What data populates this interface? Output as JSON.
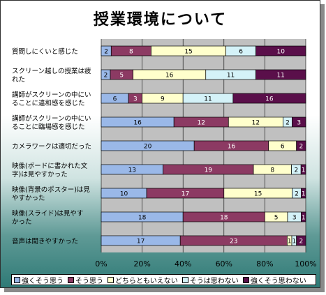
{
  "chart_data": {
    "type": "bar",
    "orientation": "horizontal",
    "stacked": "percent",
    "title": "授業環境について",
    "categories": [
      "質問しにくいと感じた",
      "スクリーン越しの授業は疲れた",
      "講師がスクリーンの中にいることに違和感を感じた",
      "講師がスクリーンの中にいることに臨場感を感じた",
      "カメラワークは適切だった",
      "映像(ボードに書かれた文字)は見やすかった",
      "映像(背景のポスター)は見やすかった",
      "映像(スライド)は見やすかった",
      "音声は聞きやすかった"
    ],
    "category_lines": [
      [
        "質問しにくいと感じた"
      ],
      [
        "スクリーン越しの授業は疲",
        "れた"
      ],
      [
        "講師がスクリーンの中にい",
        "ることに違和感を感じた"
      ],
      [
        "講師がスクリーンの中にい",
        "ることに臨場感を感じた"
      ],
      [
        "カメラワークは適切だった"
      ],
      [
        "映像(ボードに書かれた文",
        "字)は見やすかった"
      ],
      [
        "映像(背景のポスター)は見",
        "やすかった"
      ],
      [
        "映像(スライド)は見やす",
        "かった"
      ],
      [
        "音声は聞きやすかった"
      ]
    ],
    "series": [
      {
        "name": "強くそう思う",
        "color": "#9ab8e8",
        "values": [
          2,
          2,
          6,
          16,
          20,
          13,
          10,
          18,
          17
        ]
      },
      {
        "name": "そう思う",
        "color": "#8c3a63",
        "values": [
          8,
          5,
          3,
          12,
          16,
          19,
          17,
          18,
          23
        ]
      },
      {
        "name": "どちらともいえない",
        "color": "#ffffcc",
        "values": [
          15,
          16,
          9,
          12,
          6,
          8,
          15,
          5,
          1
        ]
      },
      {
        "name": "そうは思わない",
        "color": "#d4f2f8",
        "values": [
          6,
          11,
          11,
          2,
          0,
          2,
          2,
          3,
          1
        ]
      },
      {
        "name": "強くそう思わない",
        "color": "#5a0f4a",
        "values": [
          10,
          11,
          16,
          3,
          2,
          1,
          1,
          1,
          2
        ]
      }
    ],
    "xlim": [
      0,
      100
    ],
    "xticks": [
      "0%",
      "20%",
      "40%",
      "60%",
      "80%",
      "100%"
    ],
    "legend": "bottom",
    "grid": true
  }
}
